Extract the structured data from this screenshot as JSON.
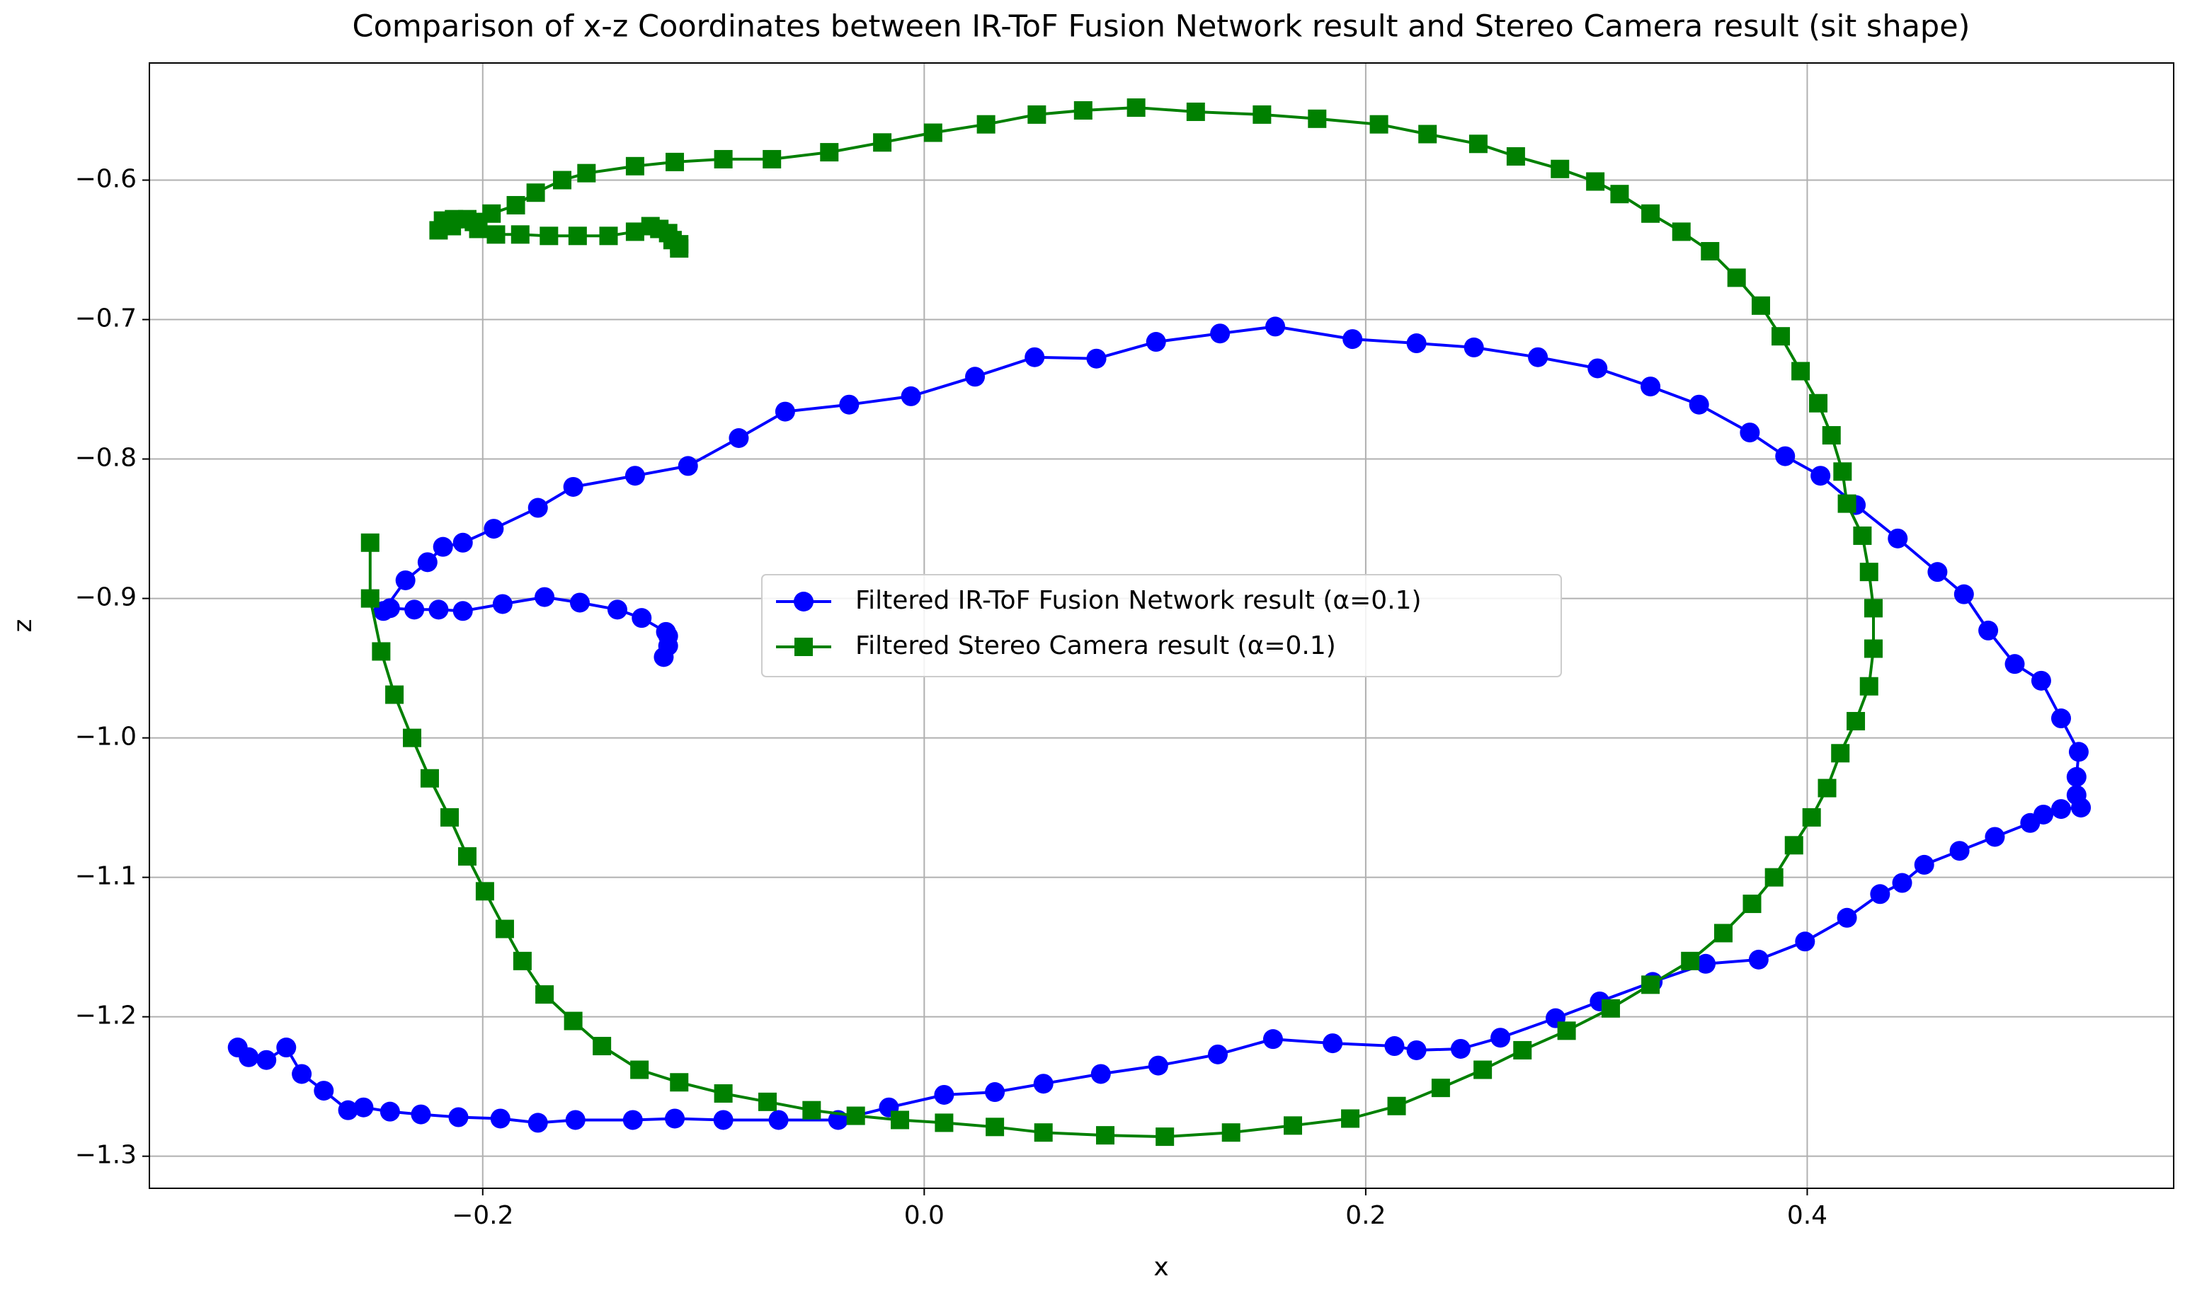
{
  "chart_data": {
    "type": "line",
    "title": "Comparison of x-z Coordinates between IR-ToF Fusion Network result and Stereo Camera result (sit shape)",
    "x_label": "x",
    "y_label": "z",
    "xlim": [
      -0.351,
      0.566
    ],
    "ylim": [
      -1.323,
      -0.516
    ],
    "xticks": [
      {
        "value": -0.2,
        "label": "−0.2"
      },
      {
        "value": 0.0,
        "label": "0.0"
      },
      {
        "value": 0.2,
        "label": "0.2"
      },
      {
        "value": 0.4,
        "label": "0.4"
      }
    ],
    "yticks": [
      {
        "value": -0.6,
        "label": "−0.6"
      },
      {
        "value": -0.7,
        "label": "−0.7"
      },
      {
        "value": -0.8,
        "label": "−0.8"
      },
      {
        "value": -0.9,
        "label": "−0.9"
      },
      {
        "value": -1.0,
        "label": "−1.0"
      },
      {
        "value": -1.1,
        "label": "−1.1"
      },
      {
        "value": -1.2,
        "label": "−1.2"
      },
      {
        "value": -1.3,
        "label": "−1.3"
      }
    ],
    "grid": true,
    "legend": "center",
    "series": [
      {
        "name": "Filtered IR-ToF Fusion Network result (α=0.1)",
        "color": "#0000ff",
        "marker": "circle",
        "x": [
          -0.118,
          -0.116,
          -0.116,
          -0.117,
          -0.128,
          -0.139,
          -0.156,
          -0.172,
          -0.191,
          -0.209,
          -0.22,
          -0.231,
          -0.242,
          -0.245,
          -0.235,
          -0.225,
          -0.218,
          -0.209,
          -0.195,
          -0.175,
          -0.159,
          -0.131,
          -0.107,
          -0.084,
          -0.063,
          -0.034,
          -0.006,
          0.023,
          0.05,
          0.078,
          0.105,
          0.134,
          0.159,
          0.194,
          0.223,
          0.249,
          0.278,
          0.305,
          0.329,
          0.351,
          0.374,
          0.39,
          0.406,
          0.422,
          0.441,
          0.459,
          0.471,
          0.482,
          0.494,
          0.506,
          0.515,
          0.523,
          0.522,
          0.522,
          0.524,
          0.515,
          0.507,
          0.501,
          0.485,
          0.469,
          0.453,
          0.443,
          0.433,
          0.418,
          0.399,
          0.378,
          0.354,
          0.33,
          0.306,
          0.286,
          0.261,
          0.243,
          0.223,
          0.213,
          0.185,
          0.158,
          0.133,
          0.106,
          0.08,
          0.054,
          0.032,
          0.009,
          -0.016,
          -0.039,
          -0.066,
          -0.091,
          -0.113,
          -0.132,
          -0.158,
          -0.175,
          -0.192,
          -0.211,
          -0.228,
          -0.242,
          -0.254,
          -0.261,
          -0.272,
          -0.282,
          -0.289,
          -0.298,
          -0.306,
          -0.311
        ],
        "values": [
          -0.942,
          -0.934,
          -0.927,
          -0.924,
          -0.914,
          -0.908,
          -0.903,
          -0.899,
          -0.904,
          -0.909,
          -0.908,
          -0.908,
          -0.907,
          -0.909,
          -0.887,
          -0.874,
          -0.863,
          -0.86,
          -0.85,
          -0.835,
          -0.82,
          -0.812,
          -0.805,
          -0.785,
          -0.766,
          -0.761,
          -0.755,
          -0.741,
          -0.727,
          -0.728,
          -0.716,
          -0.71,
          -0.705,
          -0.714,
          -0.717,
          -0.72,
          -0.727,
          -0.735,
          -0.748,
          -0.761,
          -0.781,
          -0.798,
          -0.812,
          -0.833,
          -0.857,
          -0.881,
          -0.897,
          -0.923,
          -0.947,
          -0.959,
          -0.986,
          -1.01,
          -1.028,
          -1.041,
          -1.05,
          -1.051,
          -1.055,
          -1.061,
          -1.071,
          -1.081,
          -1.091,
          -1.104,
          -1.112,
          -1.129,
          -1.146,
          -1.159,
          -1.162,
          -1.175,
          -1.189,
          -1.201,
          -1.215,
          -1.223,
          -1.224,
          -1.221,
          -1.219,
          -1.216,
          -1.227,
          -1.235,
          -1.241,
          -1.248,
          -1.254,
          -1.256,
          -1.265,
          -1.274,
          -1.274,
          -1.274,
          -1.273,
          -1.274,
          -1.274,
          -1.276,
          -1.273,
          -1.272,
          -1.27,
          -1.268,
          -1.265,
          -1.267,
          -1.253,
          -1.241,
          -1.222,
          -1.231,
          -1.229,
          -1.222
        ]
      },
      {
        "name": "Filtered Stereo Camera result (α=0.1)",
        "color": "#008000",
        "marker": "square",
        "x": [
          -0.251,
          -0.251,
          -0.246,
          -0.24,
          -0.232,
          -0.224,
          -0.215,
          -0.207,
          -0.199,
          -0.19,
          -0.182,
          -0.172,
          -0.159,
          -0.146,
          -0.129,
          -0.111,
          -0.091,
          -0.071,
          -0.051,
          -0.031,
          -0.011,
          0.009,
          0.032,
          0.054,
          0.082,
          0.109,
          0.139,
          0.167,
          0.193,
          0.214,
          0.234,
          0.253,
          0.271,
          0.291,
          0.311,
          0.329,
          0.347,
          0.362,
          0.375,
          0.385,
          0.394,
          0.402,
          0.409,
          0.415,
          0.422,
          0.428,
          0.43,
          0.43,
          0.428,
          0.425,
          0.418,
          0.416,
          0.411,
          0.405,
          0.397,
          0.388,
          0.379,
          0.368,
          0.356,
          0.343,
          0.329,
          0.315,
          0.304,
          0.288,
          0.268,
          0.251,
          0.228,
          0.206,
          0.178,
          0.153,
          0.123,
          0.096,
          0.072,
          0.051,
          0.028,
          0.004,
          -0.019,
          -0.043,
          -0.069,
          -0.091,
          -0.113,
          -0.131,
          -0.153,
          -0.164,
          -0.176,
          -0.185,
          -0.196,
          -0.204,
          -0.214,
          -0.22,
          -0.218,
          -0.213,
          -0.207,
          -0.202,
          -0.194,
          -0.183,
          -0.17,
          -0.157,
          -0.143,
          -0.131,
          -0.124,
          -0.12,
          -0.116,
          -0.114,
          -0.111,
          -0.111
        ],
        "values": [
          -0.86,
          -0.9,
          -0.938,
          -0.969,
          -1.0,
          -1.029,
          -1.057,
          -1.085,
          -1.11,
          -1.137,
          -1.16,
          -1.184,
          -1.203,
          -1.221,
          -1.238,
          -1.247,
          -1.255,
          -1.261,
          -1.267,
          -1.271,
          -1.274,
          -1.276,
          -1.279,
          -1.283,
          -1.285,
          -1.286,
          -1.283,
          -1.278,
          -1.273,
          -1.264,
          -1.251,
          -1.238,
          -1.224,
          -1.21,
          -1.194,
          -1.177,
          -1.16,
          -1.14,
          -1.119,
          -1.1,
          -1.077,
          -1.057,
          -1.036,
          -1.011,
          -0.988,
          -0.963,
          -0.936,
          -0.907,
          -0.881,
          -0.855,
          -0.832,
          -0.809,
          -0.783,
          -0.76,
          -0.737,
          -0.712,
          -0.69,
          -0.67,
          -0.651,
          -0.637,
          -0.624,
          -0.61,
          -0.601,
          -0.592,
          -0.583,
          -0.574,
          -0.567,
          -0.56,
          -0.556,
          -0.553,
          -0.551,
          -0.548,
          -0.55,
          -0.553,
          -0.56,
          -0.566,
          -0.573,
          -0.58,
          -0.585,
          -0.585,
          -0.587,
          -0.59,
          -0.595,
          -0.6,
          -0.609,
          -0.618,
          -0.624,
          -0.63,
          -0.633,
          -0.636,
          -0.629,
          -0.628,
          -0.628,
          -0.635,
          -0.639,
          -0.639,
          -0.64,
          -0.64,
          -0.64,
          -0.637,
          -0.633,
          -0.635,
          -0.638,
          -0.643,
          -0.646,
          -0.649
        ]
      }
    ]
  }
}
